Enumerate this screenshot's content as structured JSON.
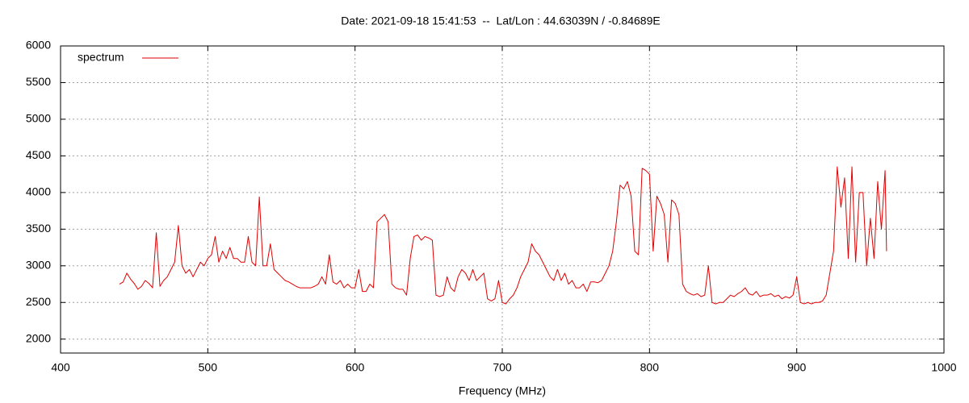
{
  "chart_data": {
    "type": "line",
    "title": "Date: 2021-09-18 15:41:53  --  Lat/Lon : 44.63039N / -0.84689E",
    "x_label": "Frequency (MHz)",
    "xlim": [
      400,
      1000
    ],
    "xticks": [
      400,
      500,
      600,
      700,
      800,
      900,
      1000
    ],
    "ylim": [
      1810,
      6000
    ],
    "yticks": [
      2000,
      2500,
      3000,
      3500,
      4000,
      4500,
      5000,
      5500,
      6000
    ],
    "grid": true,
    "legend": "top-left",
    "x": [
      440,
      442.5,
      445,
      447.5,
      450,
      452.5,
      455,
      457.5,
      460,
      462.5,
      465,
      467.5,
      470,
      472.5,
      475,
      477.5,
      480,
      482.5,
      485,
      487.5,
      490,
      492.5,
      495,
      497.5,
      500,
      502.5,
      505,
      507.5,
      510,
      512.5,
      515,
      517.5,
      520,
      522.5,
      525,
      527.5,
      530,
      532.5,
      535,
      537.5,
      540,
      542.5,
      545,
      547.5,
      550,
      552.5,
      555,
      557.5,
      560,
      562.5,
      565,
      567.5,
      570,
      572.5,
      575,
      577.5,
      580,
      582.5,
      585,
      587.5,
      590,
      592.5,
      595,
      597.5,
      600,
      602.5,
      605,
      607.5,
      610,
      612.5,
      615,
      617.5,
      620,
      622.5,
      625,
      627.5,
      630,
      632.5,
      635,
      637.5,
      640,
      642.5,
      645,
      647.5,
      650,
      652.5,
      655,
      657.5,
      660,
      662.5,
      665,
      667.5,
      670,
      672.5,
      675,
      677.5,
      680,
      682.5,
      685,
      687.5,
      690,
      692.5,
      695,
      697.5,
      700,
      702.5,
      705,
      707.5,
      710,
      712.5,
      715,
      717.5,
      720,
      722.5,
      725,
      727.5,
      730,
      732.5,
      735,
      737.5,
      740,
      742.5,
      745,
      747.5,
      750,
      752.5,
      755,
      757.5,
      760,
      762.5,
      765,
      767.5,
      770,
      772.5,
      775,
      777.5,
      780,
      782.5,
      785,
      787.5,
      790,
      792.5,
      795,
      797.5,
      800,
      802.5,
      805,
      807.5,
      810,
      812.5,
      815,
      817.5,
      820,
      822.5,
      825,
      827.5,
      830,
      832.5,
      835,
      837.5,
      840,
      842.5,
      845,
      847.5,
      850,
      852.5,
      855,
      857.5,
      860,
      862.5,
      865,
      867.5,
      870,
      872.5,
      875,
      877.5,
      880,
      882.5,
      885,
      887.5,
      890,
      892.5,
      895,
      897.5,
      900,
      902.5,
      905,
      907.5,
      910,
      912.5,
      915,
      917.5,
      920,
      922.5,
      925,
      927.5,
      930,
      932.5,
      935,
      937.5,
      940,
      942.5,
      945,
      947.5,
      950,
      952.5,
      955,
      957.5,
      960,
      961
    ],
    "series": [
      {
        "name": "spectrum",
        "color": "#e00000",
        "values": [
          2750,
          2780,
          2900,
          2820,
          2760,
          2680,
          2720,
          2800,
          2760,
          2700,
          3450,
          2720,
          2800,
          2850,
          2950,
          3050,
          3550,
          3000,
          2900,
          2950,
          2850,
          2950,
          3050,
          3000,
          3100,
          3150,
          3400,
          3050,
          3200,
          3100,
          3250,
          3100,
          3100,
          3050,
          3050,
          3400,
          3050,
          3000,
          3940,
          3000,
          3000,
          3300,
          2950,
          2900,
          2850,
          2800,
          2780,
          2750,
          2720,
          2700,
          2700,
          2700,
          2700,
          2720,
          2750,
          2850,
          2750,
          3150,
          2780,
          2750,
          2800,
          2700,
          2750,
          2700,
          2700,
          2950,
          2650,
          2650,
          2750,
          2700,
          3600,
          3650,
          3700,
          3600,
          2750,
          2700,
          2680,
          2680,
          2600,
          3100,
          3400,
          3420,
          3350,
          3400,
          3380,
          3350,
          2600,
          2580,
          2600,
          2850,
          2700,
          2650,
          2850,
          2950,
          2900,
          2800,
          2950,
          2800,
          2850,
          2900,
          2550,
          2520,
          2550,
          2800,
          2500,
          2480,
          2550,
          2600,
          2700,
          2850,
          2950,
          3050,
          3300,
          3200,
          3150,
          3050,
          2950,
          2850,
          2800,
          2950,
          2800,
          2900,
          2750,
          2800,
          2700,
          2700,
          2750,
          2650,
          2780,
          2780,
          2770,
          2800,
          2900,
          3000,
          3200,
          3600,
          4100,
          4050,
          4150,
          3950,
          3200,
          3150,
          4330,
          4300,
          4250,
          3200,
          3950,
          3850,
          3700,
          3050,
          3900,
          3850,
          3700,
          2750,
          2650,
          2620,
          2600,
          2620,
          2580,
          2600,
          3000,
          2500,
          2480,
          2500,
          2500,
          2550,
          2600,
          2580,
          2620,
          2650,
          2700,
          2620,
          2600,
          2650,
          2580,
          2600,
          2600,
          2620,
          2580,
          2600,
          2550,
          2580,
          2560,
          2600,
          2850,
          2500,
          2480,
          2500,
          2480,
          2500,
          2500,
          2520,
          2600,
          2900,
          3200,
          4350,
          3800,
          4200,
          3100,
          4350,
          3050,
          4000,
          4000,
          3000,
          3650,
          3100,
          4150,
          3500,
          4300,
          3200
        ]
      }
    ]
  }
}
